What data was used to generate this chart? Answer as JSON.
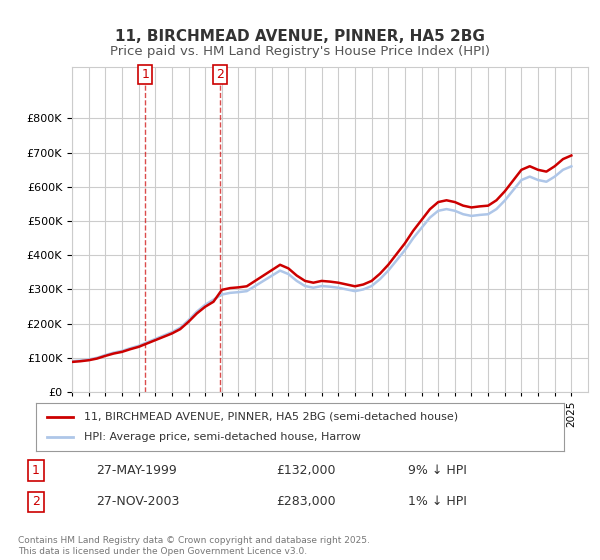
{
  "title_line1": "11, BIRCHMEAD AVENUE, PINNER, HA5 2BG",
  "title_line2": "Price paid vs. HM Land Registry's House Price Index (HPI)",
  "ylabel": "",
  "background_color": "#ffffff",
  "plot_bg_color": "#ffffff",
  "grid_color": "#cccccc",
  "hpi_color": "#aec6e8",
  "price_color": "#cc0000",
  "purchase1_date_x": 1999.41,
  "purchase1_price": 132000,
  "purchase1_label": "1",
  "purchase2_date_x": 2003.91,
  "purchase2_price": 283000,
  "purchase2_label": "2",
  "legend_label_price": "11, BIRCHMEAD AVENUE, PINNER, HA5 2BG (semi-detached house)",
  "legend_label_hpi": "HPI: Average price, semi-detached house, Harrow",
  "table_row1": "27-MAY-1999    £132,000    9% ↓ HPI",
  "table_row2": "27-NOV-2003    £283,000    1% ↓ HPI",
  "footnote": "Contains HM Land Registry data © Crown copyright and database right 2025.\nThis data is licensed under the Open Government Licence v3.0.",
  "xmin": 1995,
  "xmax": 2026,
  "ymin": 0,
  "ymax": 900000,
  "yticks": [
    0,
    100000,
    200000,
    300000,
    400000,
    500000,
    600000,
    700000,
    800000
  ]
}
